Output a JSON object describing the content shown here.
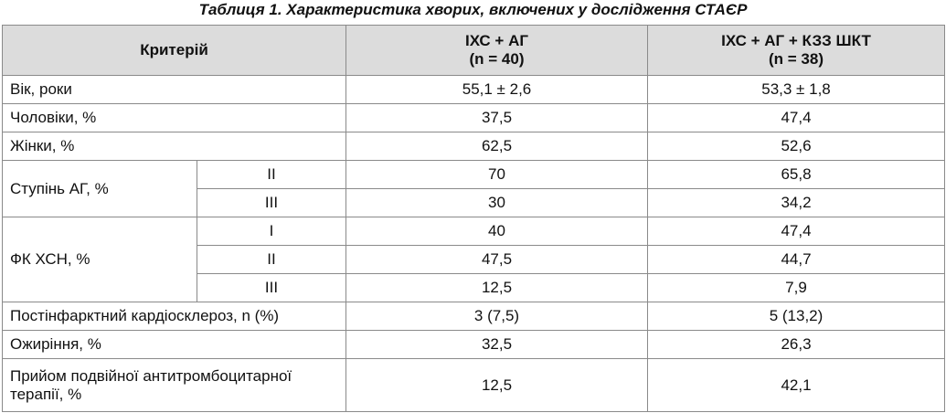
{
  "title": "Таблиця 1. Характеристика хворих, включених у дослідження СТАЄР",
  "header": {
    "criterion": "Критерій",
    "groups": [
      {
        "name": "ІХС + АГ",
        "n": "(n = 40)"
      },
      {
        "name": "ІХС + АГ + КЗЗ ШКТ",
        "n": "(n = 38)"
      }
    ]
  },
  "rows": [
    {
      "label": "Вік, роки",
      "values": [
        "55,1 ± 2,6",
        "53,3 ± 1,8"
      ]
    },
    {
      "label": "Чоловіки, %",
      "values": [
        "37,5",
        "47,4"
      ]
    },
    {
      "label": "Жінки, %",
      "values": [
        "62,5",
        "52,6"
      ]
    },
    {
      "label": "Ступінь АГ, %",
      "subrows": [
        {
          "label": "II",
          "values": [
            "70",
            "65,8"
          ]
        },
        {
          "label": "III",
          "values": [
            "30",
            "34,2"
          ]
        }
      ]
    },
    {
      "label": "ФК ХСН, %",
      "subrows": [
        {
          "label": "I",
          "values": [
            "40",
            "47,4"
          ]
        },
        {
          "label": "II",
          "values": [
            "47,5",
            "44,7"
          ]
        },
        {
          "label": "III",
          "values": [
            "12,5",
            "7,9"
          ]
        }
      ]
    },
    {
      "label": "Постінфарктний кардіосклероз, n (%)",
      "values": [
        "3 (7,5)",
        "5 (13,2)"
      ]
    },
    {
      "label": "Ожиріння, %",
      "values": [
        "32,5",
        "26,3"
      ]
    },
    {
      "label": "Прийом подвійної антитромбоцитарної терапії, %",
      "values": [
        "12,5",
        "42,1"
      ]
    }
  ]
}
